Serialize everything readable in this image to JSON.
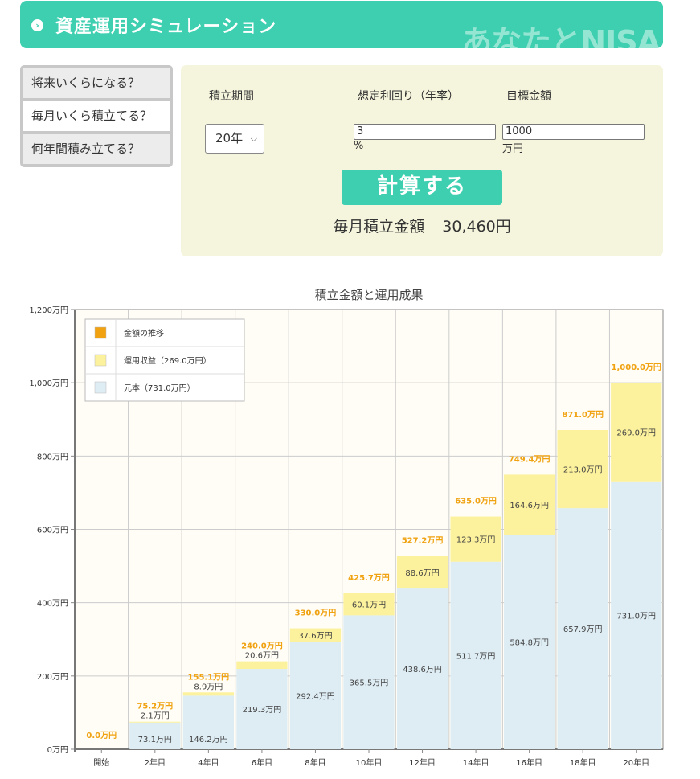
{
  "header": {
    "title": "資産運用シミュレーション",
    "brand": "あなたとNISA"
  },
  "modes": [
    {
      "label": "将来いくらになる？",
      "active": false
    },
    {
      "label": "毎月いくら積立てる？",
      "active": true
    },
    {
      "label": "何年間積み立てる？",
      "active": false
    }
  ],
  "form": {
    "period_label": "積立期間",
    "rate_label": "想定利回り（年率）",
    "target_label": "目標金額",
    "period_value": "20年",
    "rate_value": "3",
    "rate_unit": "%",
    "target_value": "1000",
    "target_unit": "万円",
    "calc_button": "計算する"
  },
  "result": {
    "label": "毎月積立金額",
    "value": "30,460円"
  },
  "colors": {
    "accent": "#3ecfb0",
    "principal": "#deedf4",
    "gain": "#fcf19c",
    "total": "#f0a211"
  },
  "chart_data": {
    "type": "bar",
    "title": "積立金額と運用成果",
    "categories": [
      "開始",
      "2年目",
      "4年目",
      "6年目",
      "8年目",
      "10年目",
      "12年目",
      "14年目",
      "16年目",
      "18年目",
      "20年目"
    ],
    "series": [
      {
        "name": "元本（731.0万円）",
        "values": [
          0,
          73.1,
          146.2,
          219.3,
          292.4,
          365.5,
          438.6,
          511.7,
          584.8,
          657.9,
          731.0
        ],
        "labels": [
          "",
          "73.1万円",
          "146.2万円",
          "219.3万円",
          "292.4万円",
          "365.5万円",
          "438.6万円",
          "511.7万円",
          "584.8万円",
          "657.9万円",
          "731.0万円"
        ]
      },
      {
        "name": "運用収益（269.0万円）",
        "values": [
          0,
          2.1,
          8.9,
          20.6,
          37.6,
          60.1,
          88.6,
          123.3,
          164.6,
          213.0,
          269.0
        ],
        "labels": [
          "",
          "2.1万円",
          "8.9万円",
          "20.6万円",
          "37.6万円",
          "60.1万円",
          "88.6万円",
          "123.3万円",
          "164.6万円",
          "213.0万円",
          "269.0万円"
        ]
      },
      {
        "name": "金額の推移",
        "values": [
          0,
          75.2,
          155.1,
          240.0,
          330.0,
          425.7,
          527.2,
          635.0,
          749.4,
          871.0,
          1000.0
        ],
        "labels": [
          "0.0万円",
          "75.2万円",
          "155.1万円",
          "240.0万円",
          "330.0万円",
          "425.7万円",
          "527.2万円",
          "635.0万円",
          "749.4万円",
          "871.0万円",
          "1,000.0万円"
        ]
      }
    ],
    "y_ticks": [
      "0万円",
      "200万円",
      "400万円",
      "600万円",
      "800万円",
      "1,000万円",
      "1,200万円"
    ],
    "ylim": [
      0,
      1200
    ],
    "grid": true,
    "legend": "top-left"
  }
}
